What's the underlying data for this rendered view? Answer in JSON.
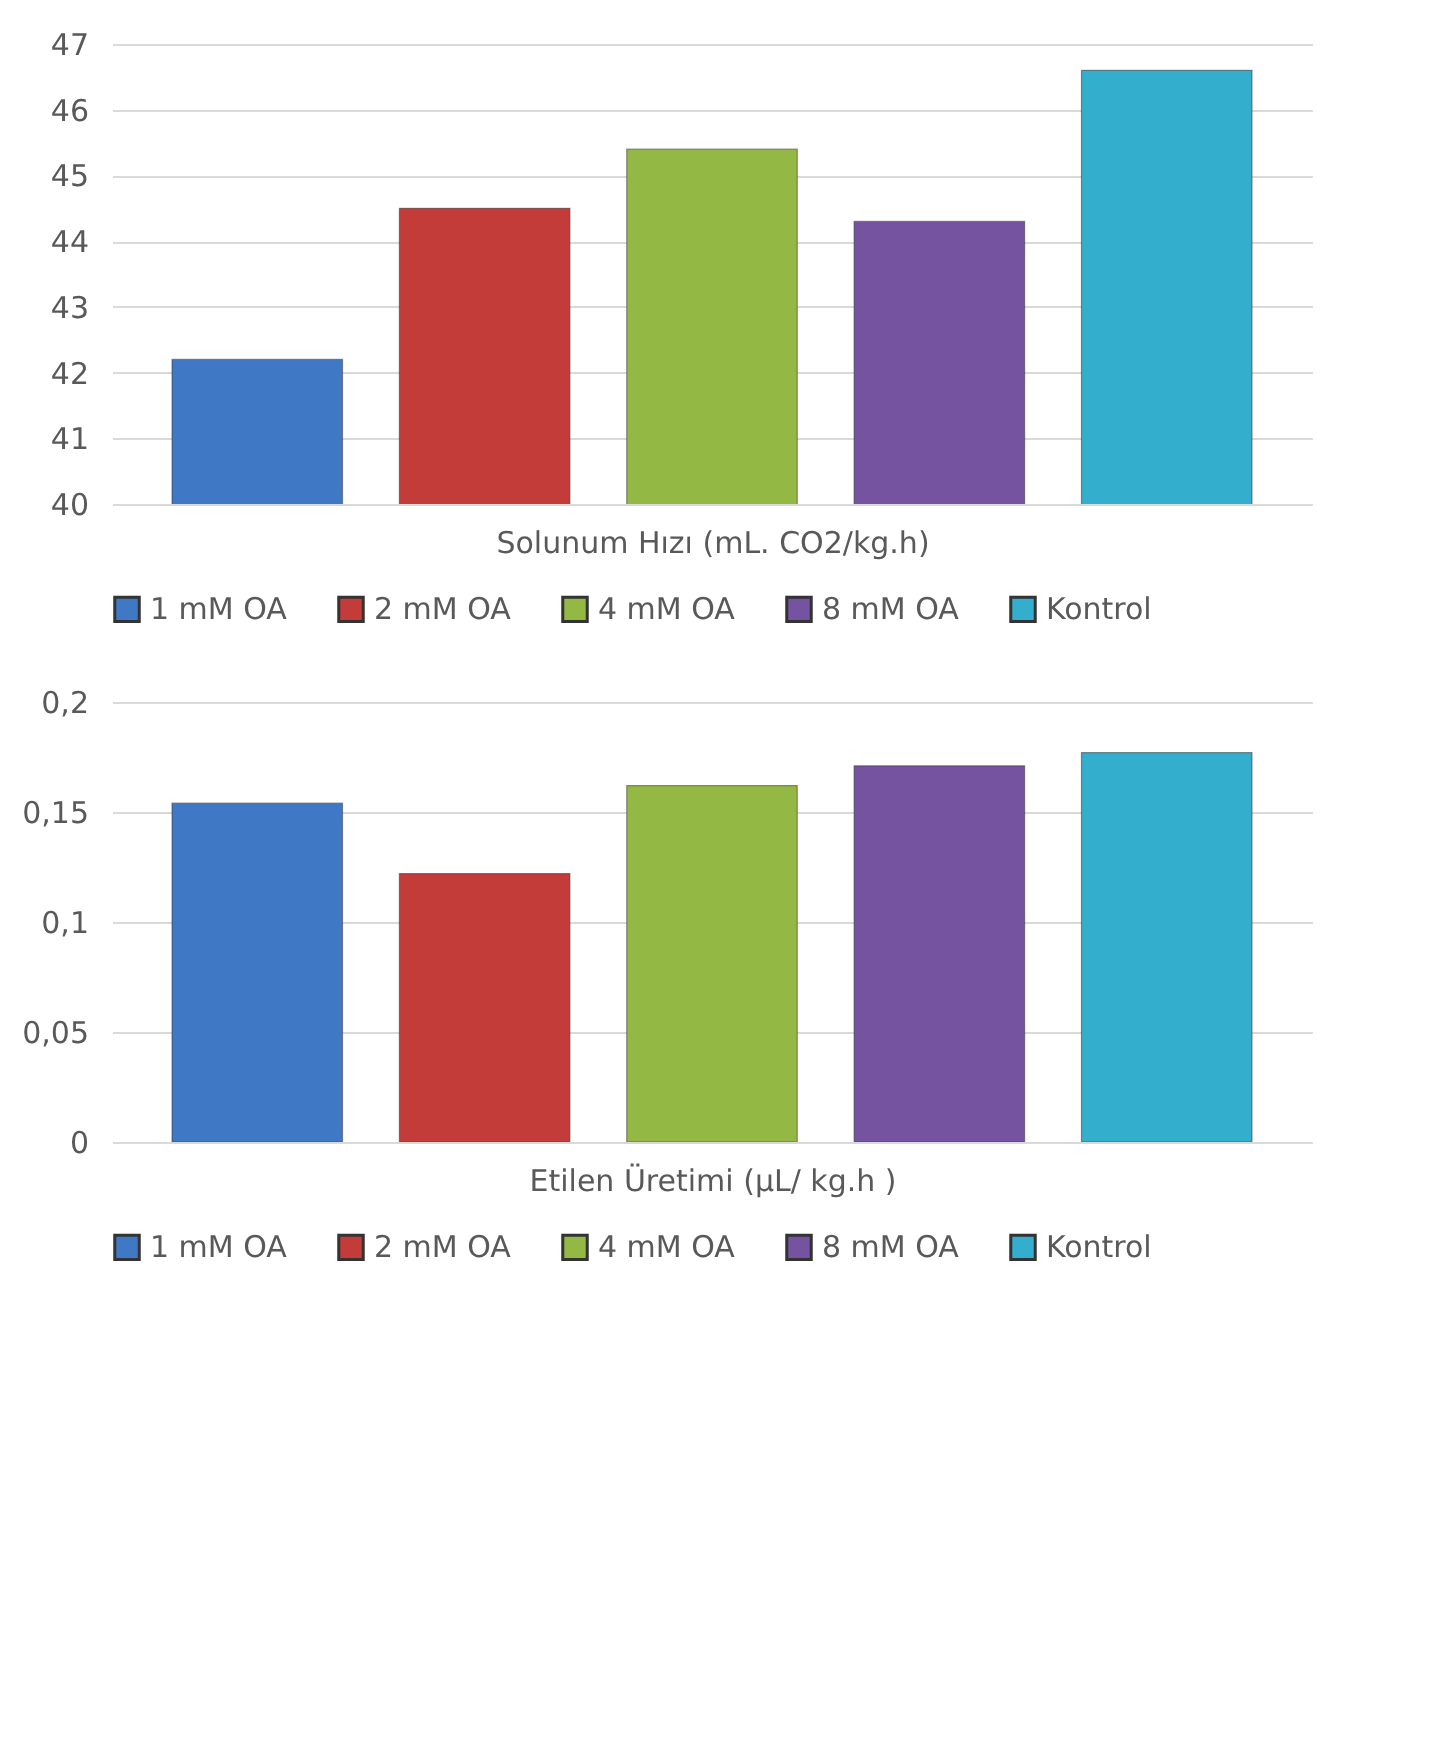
{
  "chart_data": [
    {
      "type": "bar",
      "xlabel": "Solunum Hızı (mL. CO2/kg.h)",
      "categories": [
        null
      ],
      "series": [
        {
          "name": "1 mM OA",
          "color": "#3f78c4",
          "values": [
            42.2
          ]
        },
        {
          "name": "2 mM OA",
          "color": "#c33c3a",
          "values": [
            44.5
          ]
        },
        {
          "name": "4 mM OA",
          "color": "#93b944",
          "values": [
            45.4
          ]
        },
        {
          "name": "8 mM OA",
          "color": "#7553a0",
          "values": [
            44.3
          ]
        },
        {
          "name": "Kontrol",
          "color": "#33aecd",
          "values": [
            46.6
          ]
        }
      ],
      "ylim": [
        40,
        47
      ],
      "yticks": [
        40,
        41,
        42,
        43,
        44,
        45,
        46,
        47
      ],
      "grid": "y",
      "legend": "bottom"
    },
    {
      "type": "bar",
      "xlabel": "Etilen Üretimi (µL/ kg.h )",
      "categories": [
        null
      ],
      "series": [
        {
          "name": "1 mM OA",
          "color": "#3f78c4",
          "values": [
            0.154
          ]
        },
        {
          "name": "2 mM OA",
          "color": "#c33c3a",
          "values": [
            0.122
          ]
        },
        {
          "name": "4 mM OA",
          "color": "#93b944",
          "values": [
            0.162
          ]
        },
        {
          "name": "8 mM OA",
          "color": "#7553a0",
          "values": [
            0.171
          ]
        },
        {
          "name": "Kontrol",
          "color": "#33aecd",
          "values": [
            0.177
          ]
        }
      ],
      "ylim": [
        0,
        0.2
      ],
      "yticks": [
        0,
        {
          "value": 0.05,
          "label": "0,05"
        },
        {
          "value": 0.1,
          "label": "0,1"
        },
        {
          "value": 0.15,
          "label": "0,15"
        },
        {
          "value": 0.2,
          "label": "0,2"
        }
      ],
      "grid": "y",
      "legend": "bottom"
    }
  ]
}
